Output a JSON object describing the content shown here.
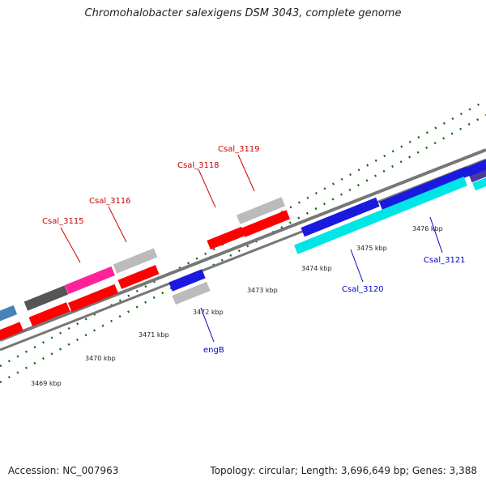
{
  "title": "Chromohalobacter salexigens DSM 3043, complete genome",
  "accession": "Accession: NC_007963",
  "summary": "Topology: circular; Length: 3,696,649 bp; Genes: 3,388",
  "tick_labels": [
    "3469 kbp",
    "3470 kbp",
    "3471 kbp",
    "3472 kbp",
    "3473 kbp",
    "3474 kbp",
    "3475 kbp",
    "3476 kbp"
  ],
  "gene_labels": {
    "csal_3115": "Csal_3115",
    "csal_3116": "Csal_3116",
    "csal_3118": "Csal_3118",
    "csal_3119": "Csal_3119",
    "engb": "engB",
    "csal_3120": "Csal_3120",
    "csal_3121": "Csal_3121"
  },
  "colors": {
    "forward_red": "#ff0000",
    "gray": "#bbbbbb",
    "blue": "#1a1adf",
    "cyan": "#00e5e5",
    "magenta": "#ff2299",
    "dark_gray": "#555555",
    "steel_blue": "#4682b4",
    "tick_green": "#116611",
    "backbone": "#777777"
  }
}
